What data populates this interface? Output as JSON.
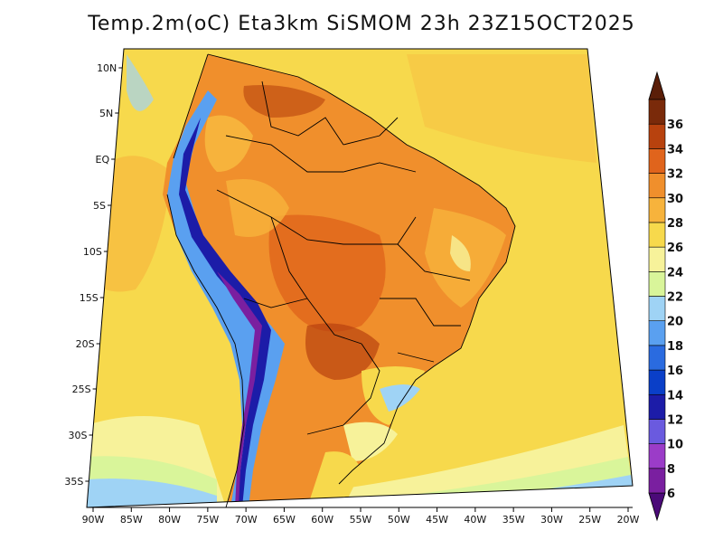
{
  "title": "Temp.2m(oC) Eta3km SiSMOM 23h 23Z15OCT2025",
  "map": {
    "lat_ticks": [
      "10N",
      "5N",
      "EQ",
      "5S",
      "10S",
      "15S",
      "20S",
      "25S",
      "30S",
      "35S"
    ],
    "lon_ticks": [
      "90W",
      "85W",
      "80W",
      "75W",
      "70W",
      "65W",
      "60W",
      "55W",
      "50W",
      "45W",
      "40W",
      "35W",
      "30W",
      "25W",
      "20W"
    ],
    "ocean_color": "#f7d94c"
  },
  "colorbar": {
    "labels": [
      "6",
      "8",
      "10",
      "12",
      "14",
      "16",
      "18",
      "20",
      "22",
      "24",
      "26",
      "28",
      "30",
      "32",
      "34",
      "36"
    ],
    "colors": [
      "#7a1fa0",
      "#9b3cc8",
      "#6a5adf",
      "#1c1ca8",
      "#0a3fc8",
      "#2a6be0",
      "#5aa0f0",
      "#9fd3f5",
      "#d9f59a",
      "#f7f29a",
      "#f7d94c",
      "#f7b33c",
      "#f08f2c",
      "#e0641c",
      "#b8420e",
      "#7a2a0a"
    ],
    "under_color": "#4b0a78",
    "over_color": "#5a1e08"
  }
}
